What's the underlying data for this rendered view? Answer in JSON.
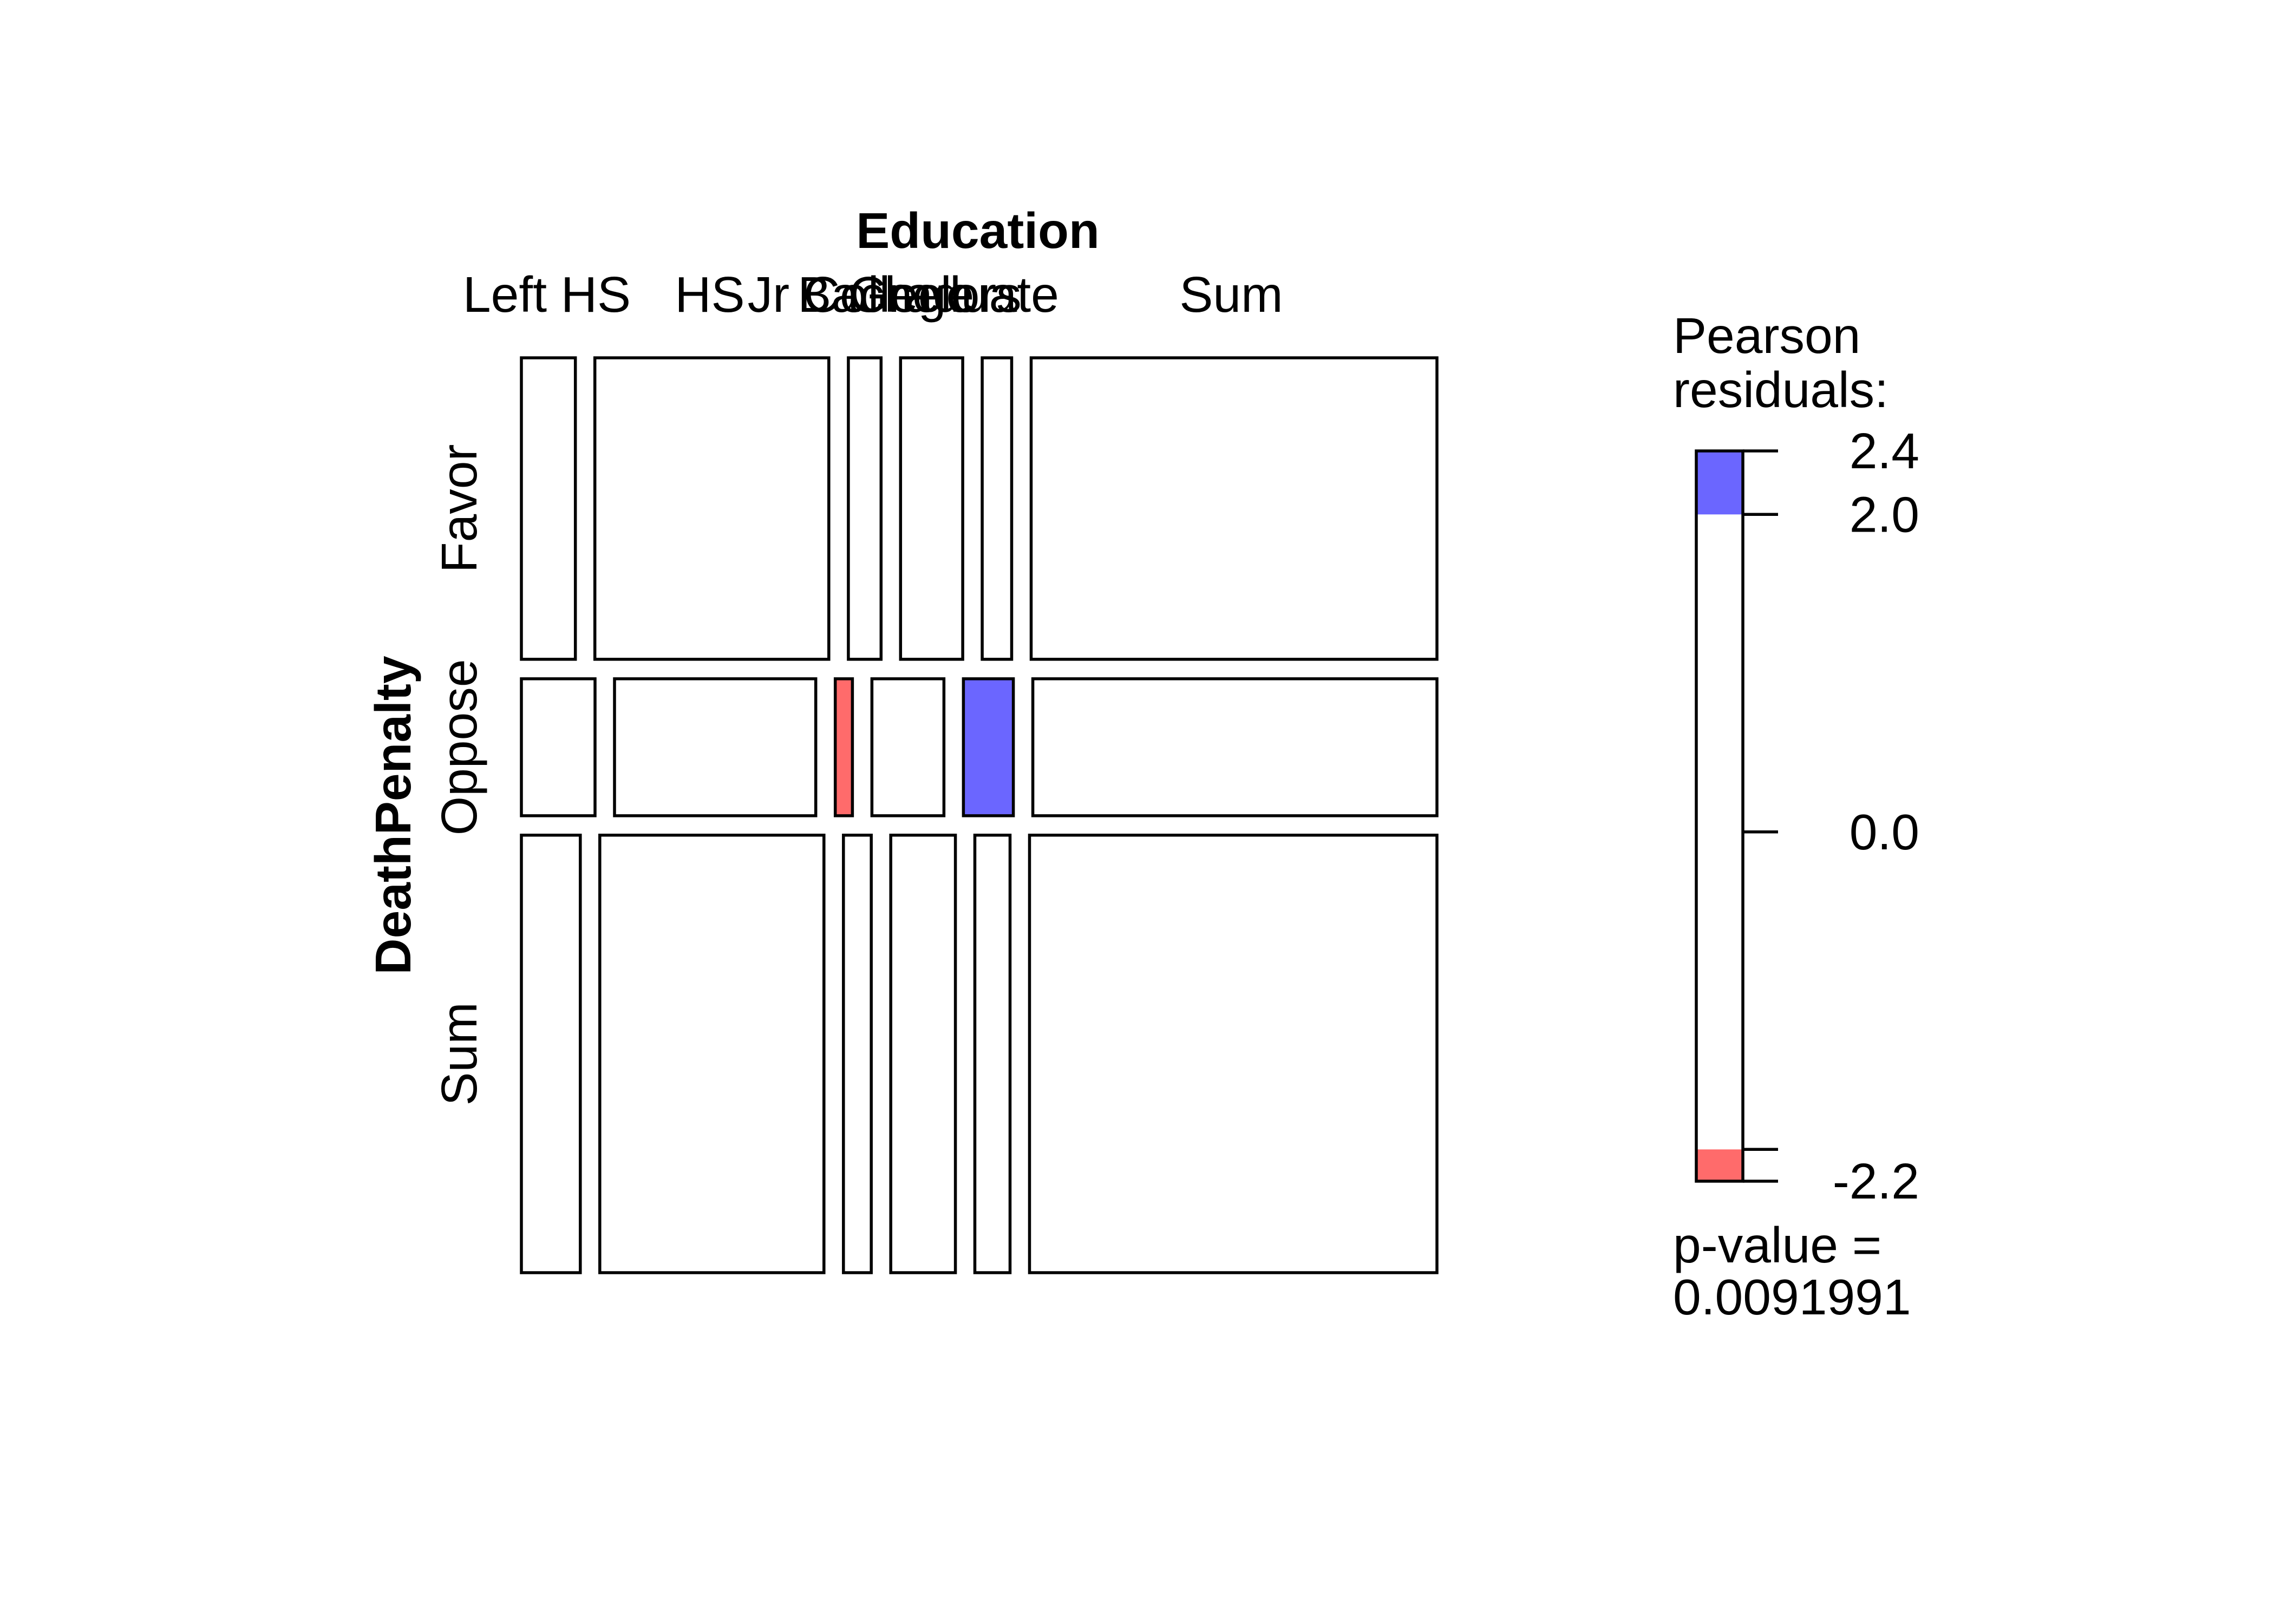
{
  "chart_data": {
    "type": "mosaic",
    "col_variable": "Education",
    "row_variable": "DeathPenalty",
    "col_labels": [
      "Left HS",
      "HS",
      "Jr College",
      "Bachelors",
      "Graduate",
      "Sum"
    ],
    "row_labels": [
      "Favor",
      "Oppose",
      "Sum"
    ],
    "proportions": [
      [
        0.066,
        0.286,
        0.04,
        0.076,
        0.036,
        0.496
      ],
      [
        0.09,
        0.246,
        0.021,
        0.088,
        0.061,
        0.494
      ],
      [
        0.072,
        0.274,
        0.034,
        0.079,
        0.043,
        0.498
      ]
    ],
    "row_shares": [
      0.328,
      0.149,
      0.476
    ],
    "residual_cells": [
      {
        "row": "Oppose",
        "col": "Jr College",
        "sign": "negative"
      },
      {
        "row": "Oppose",
        "col": "Graduate",
        "sign": "positive"
      }
    ],
    "legend": {
      "title_line1": "Pearson",
      "title_line2": "residuals:",
      "ticks": [
        "2.4",
        "2.0",
        "0.0",
        "-2.2"
      ],
      "tick_values": [
        2.4,
        2.0,
        0.0,
        -2.2
      ],
      "range": [
        -2.2,
        2.4
      ],
      "pvalue_line1": "p-value =",
      "pvalue_line2": "0.0091991"
    },
    "colors": {
      "positive": "#6b66ff",
      "negative": "#ff6b6b",
      "border": "#000000",
      "neutral": "#ffffff"
    }
  }
}
